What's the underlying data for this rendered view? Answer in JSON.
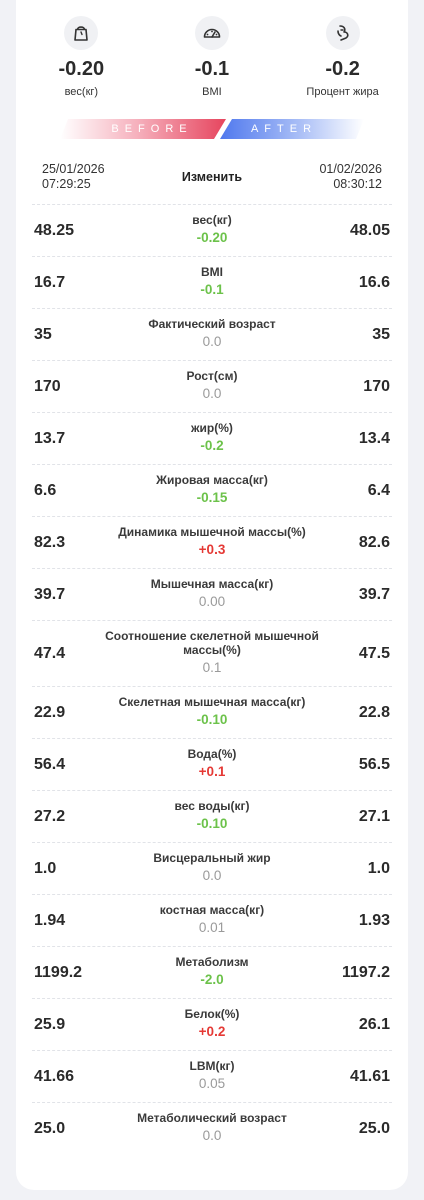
{
  "summary": [
    {
      "icon": "weight-scale-icon",
      "value": "-0.20",
      "label": "вес(кг)"
    },
    {
      "icon": "speedometer-icon",
      "value": "-0.1",
      "label": "BMI"
    },
    {
      "icon": "body-fat-icon",
      "value": "-0.2",
      "label": "Процент жира"
    }
  ],
  "banner": {
    "before": "BEFORE",
    "after": "AFTER"
  },
  "dates": {
    "left_date": "25/01/2026",
    "left_time": "07:29:25",
    "right_date": "01/02/2026",
    "right_time": "08:30:12",
    "edit_label": "Изменить"
  },
  "colors": {
    "decrease": "#6cc24a",
    "increase": "#e53935",
    "unchanged": "#9a9a9a"
  },
  "metrics": [
    {
      "name": "вес(кг)",
      "before": "48.25",
      "diff": "-0.20",
      "after": "48.05",
      "trend": "neg"
    },
    {
      "name": "BMI",
      "before": "16.7",
      "diff": "-0.1",
      "after": "16.6",
      "trend": "neg"
    },
    {
      "name": "Фактический возраст",
      "before": "35",
      "diff": "0.0",
      "after": "35",
      "trend": "zero"
    },
    {
      "name": "Рост(см)",
      "before": "170",
      "diff": "0.0",
      "after": "170",
      "trend": "zero"
    },
    {
      "name": "жир(%)",
      "before": "13.7",
      "diff": "-0.2",
      "after": "13.4",
      "trend": "neg"
    },
    {
      "name": "Жировая масса(кг)",
      "before": "6.6",
      "diff": "-0.15",
      "after": "6.4",
      "trend": "neg"
    },
    {
      "name": "Динамика мышечной массы(%)",
      "before": "82.3",
      "diff": "+0.3",
      "after": "82.6",
      "trend": "pos"
    },
    {
      "name": "Мышечная масса(кг)",
      "before": "39.7",
      "diff": "0.00",
      "after": "39.7",
      "trend": "zero"
    },
    {
      "name": "Соотношение скелетной мышечной массы(%)",
      "before": "47.4",
      "diff": "0.1",
      "after": "47.5",
      "trend": "zero"
    },
    {
      "name": "Скелетная мышечная масса(кг)",
      "before": "22.9",
      "diff": "-0.10",
      "after": "22.8",
      "trend": "neg"
    },
    {
      "name": "Вода(%)",
      "before": "56.4",
      "diff": "+0.1",
      "after": "56.5",
      "trend": "pos"
    },
    {
      "name": "вес воды(кг)",
      "before": "27.2",
      "diff": "-0.10",
      "after": "27.1",
      "trend": "neg"
    },
    {
      "name": "Висцеральный жир",
      "before": "1.0",
      "diff": "0.0",
      "after": "1.0",
      "trend": "zero"
    },
    {
      "name": "костная масса(кг)",
      "before": "1.94",
      "diff": "0.01",
      "after": "1.93",
      "trend": "zero"
    },
    {
      "name": "Метаболизм",
      "before": "1199.2",
      "diff": "-2.0",
      "after": "1197.2",
      "trend": "neg"
    },
    {
      "name": "Белок(%)",
      "before": "25.9",
      "diff": "+0.2",
      "after": "26.1",
      "trend": "pos"
    },
    {
      "name": "LBM(кг)",
      "before": "41.66",
      "diff": "0.05",
      "after": "41.61",
      "trend": "zero"
    },
    {
      "name": "Метаболический возраст",
      "before": "25.0",
      "diff": "0.0",
      "after": "25.0",
      "trend": "zero"
    }
  ]
}
